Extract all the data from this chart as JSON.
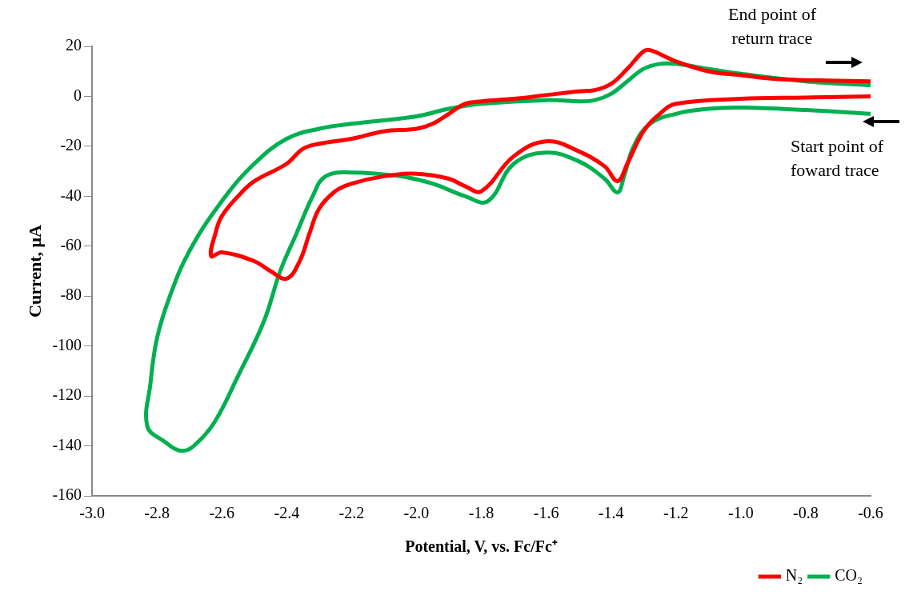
{
  "chart_data": {
    "type": "line",
    "xlabel": "Potential, V, vs. Fc/Fc⁺",
    "ylabel": "Current, μA",
    "xlim": [
      -3.0,
      -0.6
    ],
    "xticks": [
      {
        "value": -3.0,
        "label": "-3.0"
      },
      {
        "value": -2.8,
        "label": "-2.8"
      },
      {
        "value": -2.6,
        "label": "-2.6"
      },
      {
        "value": -2.4,
        "label": "-2.4"
      },
      {
        "value": -2.2,
        "label": "-2.2"
      },
      {
        "value": -2.0,
        "label": "-2.0"
      },
      {
        "value": -1.8,
        "label": "-1.8"
      },
      {
        "value": -1.6,
        "label": "-1.6"
      },
      {
        "value": -1.4,
        "label": "-1.4"
      },
      {
        "value": -1.2,
        "label": "-1.2"
      },
      {
        "value": -1.0,
        "label": "-1.0"
      },
      {
        "value": -0.8,
        "label": "-0.8"
      },
      {
        "value": -0.6,
        "label": "-0.6"
      }
    ],
    "ylim": [
      -160,
      20
    ],
    "yticks": [
      -160,
      -140,
      -120,
      -100,
      -80,
      -60,
      -40,
      -20,
      0,
      20
    ],
    "grid": false,
    "legend": "bottom right",
    "marker": "none",
    "line_style": "solid",
    "annotations": [
      "End point of return trace",
      "Start point of foward trace"
    ],
    "series": [
      {
        "name": "N₂",
        "color": "#ff0000",
        "x": [
          -0.6,
          -0.8,
          -1.0,
          -1.2,
          -1.25,
          -1.3,
          -1.35,
          -1.38,
          -1.42,
          -1.5,
          -1.6,
          -1.7,
          -1.8,
          -1.85,
          -1.9,
          -2.0,
          -2.1,
          -2.2,
          -2.25,
          -2.3,
          -2.33,
          -2.36,
          -2.4,
          -2.45,
          -2.5,
          -2.6,
          -2.633,
          -2.62,
          -2.6,
          -2.55,
          -2.5,
          -2.4,
          -2.35,
          -2.3,
          -2.2,
          -2.1,
          -2.0,
          -1.95,
          -1.9,
          -1.85,
          -1.8,
          -1.7,
          -1.6,
          -1.5,
          -1.45,
          -1.4,
          -1.35,
          -1.3,
          -1.28,
          -1.2,
          -1.1,
          -1.0,
          -0.9,
          -0.8,
          -0.6
        ],
        "values": [
          0,
          -0.5,
          -1,
          -3,
          -7,
          -14,
          -27,
          -34,
          -28,
          -22,
          -18,
          -24,
          -38,
          -36,
          -33,
          -31,
          -32,
          -35,
          -38,
          -45,
          -55,
          -66,
          -73,
          -70,
          -66,
          -62.5,
          -64,
          -55,
          -48,
          -40,
          -34,
          -27,
          -21,
          -19,
          -17,
          -14,
          -13,
          -11,
          -7,
          -3,
          -2,
          -1,
          0.5,
          2,
          2.5,
          5,
          11,
          18,
          18.5,
          14,
          10,
          8.5,
          7,
          6.5,
          6
        ]
      },
      {
        "name": "CO₂",
        "color": "#00b050",
        "x": [
          -0.6,
          -0.8,
          -1.0,
          -1.1,
          -1.2,
          -1.28,
          -1.33,
          -1.36,
          -1.38,
          -1.42,
          -1.5,
          -1.6,
          -1.7,
          -1.78,
          -1.85,
          -1.95,
          -2.05,
          -2.2,
          -2.28,
          -2.32,
          -2.37,
          -2.42,
          -2.47,
          -2.55,
          -2.62,
          -2.67,
          -2.72,
          -2.78,
          -2.83,
          -2.82,
          -2.8,
          -2.76,
          -2.7,
          -2.6,
          -2.5,
          -2.4,
          -2.3,
          -2.2,
          -2.0,
          -1.9,
          -1.8,
          -1.6,
          -1.5,
          -1.45,
          -1.4,
          -1.35,
          -1.3,
          -1.25,
          -1.2,
          -1.1,
          -1.0,
          -0.8,
          -0.6
        ],
        "values": [
          -7,
          -5.5,
          -4.5,
          -5,
          -7,
          -11,
          -20,
          -32,
          -38.5,
          -33,
          -26,
          -22.5,
          -27,
          -42,
          -40,
          -35,
          -32,
          -30.5,
          -32,
          -40,
          -55,
          -70,
          -90,
          -112,
          -130,
          -138,
          -142,
          -138,
          -132,
          -115,
          -97,
          -80,
          -62,
          -42,
          -27,
          -17,
          -13,
          -11,
          -8,
          -5,
          -3,
          -1.5,
          -2,
          -1.5,
          1,
          6,
          11,
          13,
          13,
          11,
          9,
          6,
          4.5
        ]
      }
    ]
  }
}
